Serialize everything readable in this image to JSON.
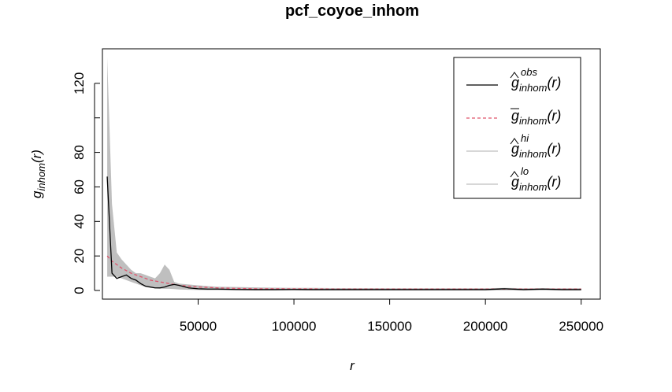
{
  "chart_data": {
    "type": "line",
    "title": "pcf_coyoe_inhom",
    "xlabel": "r",
    "ylabel": {
      "base": "g",
      "sub": "inhom",
      "suffix": "(r)"
    },
    "xlim": [
      0,
      260000
    ],
    "ylim": [
      -5,
      140
    ],
    "xticks": [
      50000,
      100000,
      150000,
      200000,
      250000
    ],
    "xtick_labels": [
      "50000",
      "100000",
      "150000",
      "200000",
      "250000"
    ],
    "yticks": [
      0,
      20,
      40,
      60,
      80,
      100,
      120
    ],
    "ytick_labels": [
      "0",
      "20",
      "40",
      "60",
      "80",
      "",
      "120"
    ],
    "legend_position": "top-right",
    "colors": {
      "obs": "#000000",
      "theo": "#df536b",
      "envelope": "#bfbfbf"
    },
    "legend": [
      {
        "base": "g",
        "sub": "inhom",
        "sup": "obs",
        "suffix": "(r)",
        "mark": "hat",
        "style": "solid",
        "color": "#000000"
      },
      {
        "base": "g",
        "sub": "inhom",
        "sup": "",
        "suffix": "(r)",
        "mark": "bar",
        "style": "dashed",
        "color": "#df536b"
      },
      {
        "base": "g",
        "sub": "inhom",
        "sup": "hi",
        "suffix": "(r)",
        "mark": "hat",
        "style": "solid",
        "color": "#bfbfbf"
      },
      {
        "base": "g",
        "sub": "inhom",
        "sup": "lo",
        "suffix": "(r)",
        "mark": "hat",
        "style": "solid",
        "color": "#bfbfbf"
      }
    ],
    "x": [
      2500,
      5000,
      7500,
      10000,
      12500,
      15000,
      17500,
      20000,
      22500,
      25000,
      27500,
      30000,
      32500,
      35000,
      37500,
      40000,
      45000,
      50000,
      55000,
      60000,
      70000,
      80000,
      90000,
      100000,
      110000,
      120000,
      130000,
      140000,
      150000,
      160000,
      170000,
      180000,
      190000,
      200000,
      210000,
      220000,
      230000,
      240000,
      250000
    ],
    "series": [
      {
        "values": [
          66,
          10,
          7,
          8,
          9,
          7,
          6,
          4,
          2.5,
          2,
          1.5,
          1.5,
          2,
          3,
          3.5,
          3,
          1.5,
          1,
          0.8,
          0.8,
          0.6,
          0.5,
          0.5,
          0.6,
          0.5,
          0.5,
          0.5,
          0.5,
          0.5,
          0.5,
          0.5,
          0.5,
          0.5,
          0.5,
          1,
          0.5,
          0.8,
          0.5,
          0.5
        ]
      },
      {
        "values": [
          20,
          17,
          15,
          13,
          11.5,
          10,
          9,
          8,
          7,
          6,
          5.5,
          5,
          4.5,
          4,
          3.5,
          3,
          2.5,
          2,
          1.8,
          1.5,
          1.2,
          1,
          1,
          0.9,
          0.9,
          0.8,
          0.8,
          0.8,
          0.8,
          0.8,
          0.8,
          0.8,
          0.8,
          0.8,
          0.8,
          0.8,
          0.8,
          0.8,
          0.8
        ]
      },
      {
        "values": [
          135,
          50,
          22,
          18,
          15,
          12,
          10,
          10,
          9,
          8,
          7,
          10,
          15,
          12,
          5,
          4,
          3.5,
          3,
          2.5,
          2.2,
          2,
          1.8,
          1.6,
          1.5,
          1.5,
          1.4,
          1.4,
          1.4,
          1.3,
          1.3,
          1.3,
          1.3,
          1.3,
          1.3,
          1.5,
          1.3,
          1.3,
          1.3,
          1.3
        ]
      },
      {
        "values": [
          8,
          8,
          8,
          7,
          6,
          5,
          4,
          3,
          2,
          1.5,
          1.2,
          1,
          1,
          1,
          0.8,
          0.6,
          0.4,
          0.3,
          0.2,
          0.2,
          0.1,
          0.1,
          0.1,
          0.1,
          0.1,
          0.1,
          0.1,
          0.1,
          0.1,
          0.1,
          0.1,
          0.1,
          0.1,
          0.1,
          0.1,
          0.1,
          0.1,
          0.1,
          0.1
        ]
      }
    ]
  }
}
